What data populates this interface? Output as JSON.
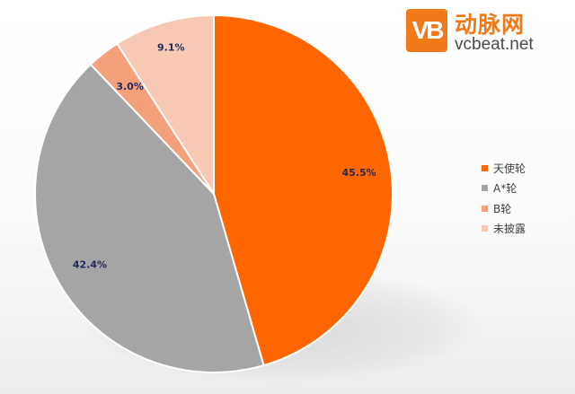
{
  "logo": {
    "mark_text": "VB",
    "name_cn": "动脉网",
    "name_en": "vcbeat.net"
  },
  "chart_data": {
    "type": "pie",
    "categories": [
      "天使轮",
      "A*轮",
      "B轮",
      "未披露"
    ],
    "values": [
      45.5,
      42.4,
      3.0,
      9.1
    ],
    "data_labels": [
      "45.5%",
      "42.4%",
      "3.0%",
      "9.1%"
    ],
    "colors": [
      "#ff6600",
      "#a5a5a5",
      "#f4a07a",
      "#f7c9b5"
    ],
    "start_angle_deg": 0,
    "direction": "clockwise",
    "legend_position": "right",
    "title": ""
  }
}
